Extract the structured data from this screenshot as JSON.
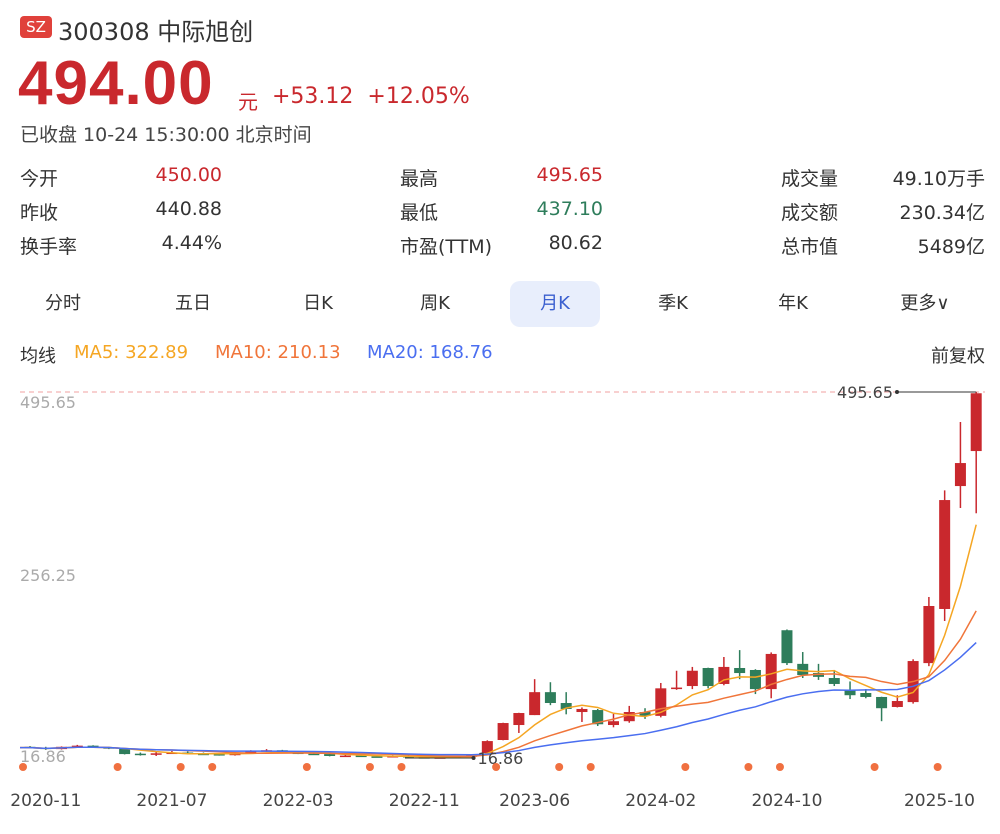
{
  "header": {
    "exchange_badge": "SZ",
    "title": "300308 中际旭创",
    "price": "494.00",
    "unit": "元",
    "change": "+53.12",
    "change_pct": "+12.05%",
    "status": "已收盘 10-24 15:30:00 北京时间"
  },
  "stats": [
    [
      {
        "label": "今开",
        "value": "450.00",
        "color": "#c9282d"
      },
      {
        "label": "最高",
        "value": "495.65",
        "color": "#c9282d"
      },
      {
        "label": "成交量",
        "value": "49.10万手",
        "color": "#333333"
      }
    ],
    [
      {
        "label": "昨收",
        "value": "440.88",
        "color": "#333333"
      },
      {
        "label": "最低",
        "value": "437.10",
        "color": "#2e7d5b"
      },
      {
        "label": "成交额",
        "value": "230.34亿",
        "color": "#333333"
      }
    ],
    [
      {
        "label": "换手率",
        "value": "4.44%",
        "color": "#333333"
      },
      {
        "label": "市盈(TTM)",
        "value": "80.62",
        "color": "#333333"
      },
      {
        "label": "总市值",
        "value": "5489亿",
        "color": "#333333"
      }
    ]
  ],
  "tabs": [
    {
      "label": "分时"
    },
    {
      "label": "五日"
    },
    {
      "label": "日K"
    },
    {
      "label": "周K"
    },
    {
      "label": "月K",
      "active": true
    },
    {
      "label": "季K"
    },
    {
      "label": "年K"
    },
    {
      "label": "更多∨"
    }
  ],
  "ma_legend": {
    "title": "均线",
    "ma5": "MA5: 322.89",
    "ma10": "MA10: 210.13",
    "ma20": "MA20: 168.76",
    "adjust": "前复权"
  },
  "colors": {
    "up": "#c9282d",
    "down": "#2e7d5b",
    "ma5": "#f5a623",
    "ma10": "#f0753a",
    "ma20": "#4a6ef0",
    "active_tab_bg": "#e8eefc",
    "event_dot": "#f07040"
  },
  "chart_data": {
    "type": "candlestick",
    "y_ticks": [
      "495.65",
      "256.25",
      "16.86"
    ],
    "ylim": [
      16.86,
      495.65
    ],
    "max_label": "495.65",
    "min_label": "16.86",
    "x_tick_labels": [
      {
        "month": "2020-11",
        "label": "2020-11"
      },
      {
        "month": "2021-07",
        "label": "2021-07"
      },
      {
        "month": "2022-03",
        "label": "2022-03"
      },
      {
        "month": "2022-11",
        "label": "2022-11"
      },
      {
        "month": "2023-06",
        "label": "2023-06"
      },
      {
        "month": "2024-02",
        "label": "2024-02"
      },
      {
        "month": "2024-10",
        "label": "2024-10"
      },
      {
        "month": "2025-10",
        "label": "2025-10"
      }
    ],
    "months": [
      "2020-10",
      "2020-11",
      "2020-12",
      "2021-01",
      "2021-02",
      "2021-03",
      "2021-04",
      "2021-05",
      "2021-06",
      "2021-07",
      "2021-08",
      "2021-09",
      "2021-10",
      "2021-11",
      "2021-12",
      "2022-01",
      "2022-02",
      "2022-03",
      "2022-04",
      "2022-05",
      "2022-06",
      "2022-07",
      "2022-08",
      "2022-09",
      "2022-10",
      "2022-11",
      "2022-12",
      "2023-01",
      "2023-02",
      "2023-03",
      "2023-04",
      "2023-05",
      "2023-06",
      "2023-07",
      "2023-08",
      "2023-09",
      "2023-10",
      "2023-11",
      "2023-12",
      "2024-01",
      "2024-02",
      "2024-03",
      "2024-04",
      "2024-05",
      "2024-06",
      "2024-07",
      "2024-08",
      "2024-09",
      "2024-10",
      "2024-11",
      "2024-12",
      "2025-01",
      "2025-02",
      "2025-03",
      "2025-04",
      "2025-05",
      "2025-06",
      "2025-07",
      "2025-08",
      "2025-09",
      "2025-10"
    ],
    "ohlc": [
      [
        31.5,
        32.5,
        29.5,
        30.5
      ],
      [
        30.5,
        31.5,
        27.5,
        28.5
      ],
      [
        28.5,
        32,
        28,
        31.5
      ],
      [
        31.5,
        34,
        30.5,
        33
      ],
      [
        33,
        33.5,
        30.5,
        31
      ],
      [
        31,
        31.5,
        28.5,
        29
      ],
      [
        29,
        29.5,
        21.5,
        22
      ],
      [
        22.5,
        24,
        20,
        21
      ],
      [
        21,
        25,
        19.5,
        23
      ],
      [
        23,
        26,
        22.5,
        24
      ],
      [
        24,
        25.5,
        21.5,
        22.5
      ],
      [
        22.5,
        24,
        21,
        22
      ],
      [
        22,
        23,
        20,
        20.5
      ],
      [
        20.5,
        24,
        20,
        23
      ],
      [
        23,
        27,
        22.5,
        25.5
      ],
      [
        25.5,
        28.5,
        25,
        27
      ],
      [
        27,
        27.5,
        23.5,
        24
      ],
      [
        24,
        25,
        22,
        22.5
      ],
      [
        22.5,
        23.5,
        21,
        22
      ],
      [
        22,
        22.5,
        19,
        19.5
      ],
      [
        19.5,
        21,
        19,
        20
      ],
      [
        20,
        21,
        18.5,
        19
      ],
      [
        19,
        20,
        18,
        18.5
      ],
      [
        18.5,
        20.5,
        18,
        19.5
      ],
      [
        19.5,
        20,
        17.5,
        18
      ],
      [
        18,
        18.5,
        17.2,
        17.5
      ],
      [
        17.5,
        18.5,
        17,
        17.8
      ],
      [
        17.8,
        20,
        17.5,
        19.5
      ],
      [
        19.5,
        22,
        16.86,
        20.5
      ],
      [
        23.4,
        40,
        22,
        39
      ],
      [
        40.4,
        63,
        40,
        62.6
      ],
      [
        60,
        76,
        49.6,
        75.7
      ],
      [
        73,
        120,
        73,
        103
      ],
      [
        103,
        116,
        86,
        88.8
      ],
      [
        88.8,
        103,
        74,
        81
      ],
      [
        77,
        83,
        64,
        81
      ],
      [
        79.6,
        81,
        58.7,
        61
      ],
      [
        60,
        74.4,
        57,
        65
      ],
      [
        65,
        85,
        63,
        77
      ],
      [
        77,
        82,
        68,
        72
      ],
      [
        72,
        115,
        70,
        108
      ],
      [
        107,
        131,
        106,
        109
      ],
      [
        111,
        136,
        107,
        131
      ],
      [
        134.6,
        135,
        108,
        111
      ],
      [
        113.7,
        149,
        112,
        136
      ],
      [
        134.6,
        158,
        120,
        128
      ],
      [
        132,
        133,
        100.5,
        107
      ],
      [
        107,
        155,
        95,
        153
      ],
      [
        184,
        185,
        138.5,
        141
      ],
      [
        140,
        155.5,
        121.5,
        125.4
      ],
      [
        128,
        140,
        119,
        123
      ],
      [
        121.5,
        132,
        111,
        113.7
      ],
      [
        105.8,
        117,
        94,
        99
      ],
      [
        101.9,
        107,
        95,
        96.7
      ],
      [
        96.7,
        97,
        65,
        82
      ],
      [
        83.6,
        99,
        83,
        91.4
      ],
      [
        90,
        146,
        88,
        143.7
      ],
      [
        141,
        227.5,
        137,
        215.7
      ],
      [
        211.8,
        367,
        196,
        354.3
      ],
      [
        372.6,
        456.4,
        343.9,
        402.7
      ],
      [
        418.4,
        495.65,
        337,
        494
      ]
    ],
    "event_months": [
      "2020-10",
      "2021-04",
      "2021-08",
      "2021-10",
      "2022-04",
      "2022-08",
      "2022-10",
      "2023-04",
      "2023-08",
      "2023-10",
      "2024-04",
      "2024-08",
      "2024-10",
      "2025-04",
      "2025-08"
    ],
    "grid": false
  }
}
